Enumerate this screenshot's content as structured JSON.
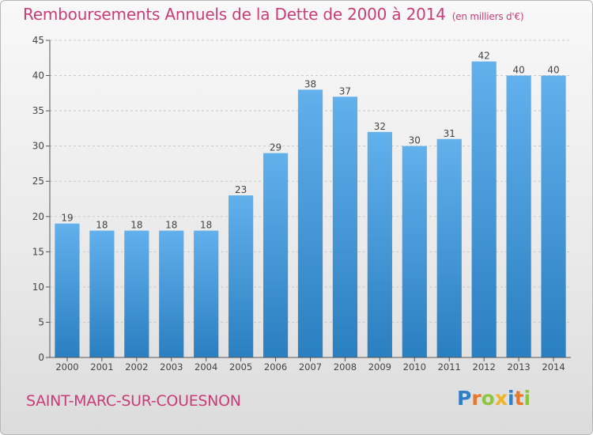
{
  "title": "Remboursements Annuels de la Dette de 2000 à 2014",
  "unit": "(en milliers d'€)",
  "commune": "SAINT-MARC-SUR-COUESNON",
  "logo": {
    "text": "Proxiti",
    "letters": [
      {
        "ch": "P",
        "color": "#2e7fc4"
      },
      {
        "ch": "r",
        "color": "#e8772a"
      },
      {
        "ch": "o",
        "color": "#8cc63e"
      },
      {
        "ch": "x",
        "color": "#f0b323"
      },
      {
        "ch": "i",
        "color": "#2e7fc4"
      },
      {
        "ch": "t",
        "color": "#e8772a"
      },
      {
        "ch": "i",
        "color": "#8cc63e"
      }
    ]
  },
  "colors": {
    "bar_top": "#62b0ec",
    "bar_bottom": "#2a7fc0",
    "title": "#c83d77",
    "axis": "#555555",
    "grid": "#c9c9c9"
  },
  "chart_data": {
    "type": "bar",
    "categories": [
      "2000",
      "2001",
      "2002",
      "2003",
      "2004",
      "2005",
      "2006",
      "2007",
      "2008",
      "2009",
      "2010",
      "2011",
      "2012",
      "2013",
      "2014"
    ],
    "values": [
      19,
      18,
      18,
      18,
      18,
      23,
      29,
      38,
      37,
      32,
      30,
      31,
      42,
      40,
      40
    ],
    "ylim": [
      0,
      45
    ],
    "yticks": [
      0,
      5,
      10,
      15,
      20,
      25,
      30,
      35,
      40,
      45
    ],
    "grid": true,
    "data_labels": true
  }
}
